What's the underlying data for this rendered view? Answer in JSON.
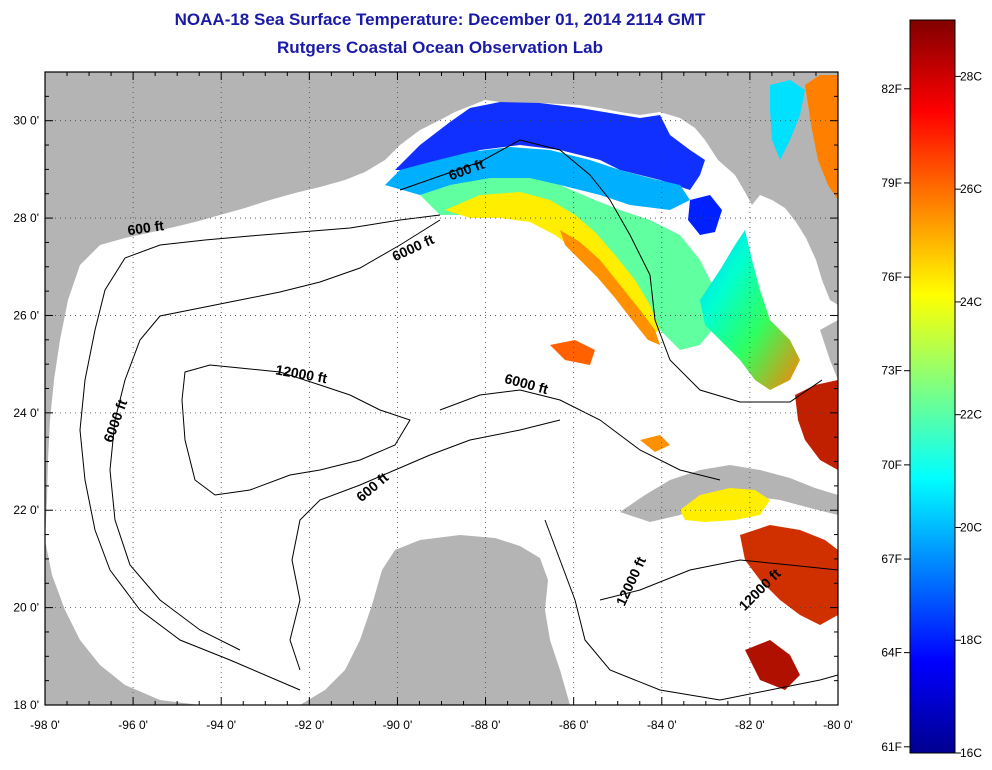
{
  "title": "NOAA-18 Sea Surface Temperature:  December 01, 2014 2114 GMT",
  "subtitle": "Rutgers Coastal Ocean Observation Lab",
  "map": {
    "lon_range": [
      -98,
      -80
    ],
    "lat_range": [
      18,
      31
    ],
    "lon_ticks": [
      {
        "value": -98,
        "label": "-98 0'"
      },
      {
        "value": -96,
        "label": "-96 0'"
      },
      {
        "value": -94,
        "label": "-94 0'"
      },
      {
        "value": -92,
        "label": "-92 0'"
      },
      {
        "value": -90,
        "label": "-90 0'"
      },
      {
        "value": -88,
        "label": "-88 0'"
      },
      {
        "value": -86,
        "label": "-86 0'"
      },
      {
        "value": -84,
        "label": "-84 0'"
      },
      {
        "value": -82,
        "label": "-82 0'"
      },
      {
        "value": -80,
        "label": "-80 0'"
      }
    ],
    "lat_ticks": [
      {
        "value": 18,
        "label": "18 0'"
      },
      {
        "value": 20,
        "label": "20 0'"
      },
      {
        "value": 22,
        "label": "22 0'"
      },
      {
        "value": 24,
        "label": "24 0'"
      },
      {
        "value": 26,
        "label": "26 0'"
      },
      {
        "value": 28,
        "label": "28 0'"
      },
      {
        "value": 30,
        "label": "30 0'"
      }
    ],
    "contour_labels": [
      {
        "text": "600 ft",
        "lon": -95.7,
        "lat": 27.7,
        "rotate": -8
      },
      {
        "text": "6000 ft",
        "lon": -89.6,
        "lat": 27.3,
        "rotate": -25
      },
      {
        "text": "600 ft",
        "lon": -88.4,
        "lat": 28.9,
        "rotate": -20
      },
      {
        "text": "12000 ft",
        "lon": -92.2,
        "lat": 24.7,
        "rotate": 10
      },
      {
        "text": "6000 ft",
        "lon": -87.1,
        "lat": 24.5,
        "rotate": 15
      },
      {
        "text": "6000 ft",
        "lon": -96.3,
        "lat": 23.8,
        "rotate": -70
      },
      {
        "text": "600 ft",
        "lon": -90.5,
        "lat": 22.4,
        "rotate": -40
      },
      {
        "text": "12000 ft",
        "lon": -84.6,
        "lat": 20.5,
        "rotate": -65
      },
      {
        "text": "12000 ft",
        "lon": -81.7,
        "lat": 20.3,
        "rotate": -45
      }
    ]
  },
  "colorbar": {
    "range_c": [
      16,
      29
    ],
    "celsius_labels": [
      {
        "value": 16,
        "label": "16C"
      },
      {
        "value": 18,
        "label": "18C"
      },
      {
        "value": 20,
        "label": "20C"
      },
      {
        "value": 22,
        "label": "22C"
      },
      {
        "value": 24,
        "label": "24C"
      },
      {
        "value": 26,
        "label": "26C"
      },
      {
        "value": 28,
        "label": "28C"
      }
    ],
    "fahrenheit_labels": [
      {
        "value_c": 16.11,
        "label": "61F"
      },
      {
        "value_c": 17.78,
        "label": "64F"
      },
      {
        "value_c": 19.44,
        "label": "67F"
      },
      {
        "value_c": 21.11,
        "label": "70F"
      },
      {
        "value_c": 22.78,
        "label": "73F"
      },
      {
        "value_c": 24.44,
        "label": "76F"
      },
      {
        "value_c": 26.11,
        "label": "79F"
      },
      {
        "value_c": 27.78,
        "label": "82F"
      }
    ],
    "colors": [
      "#00008f",
      "#0000ff",
      "#0080ff",
      "#00ffff",
      "#80ff80",
      "#ffff00",
      "#ff8000",
      "#ff0000",
      "#800000"
    ]
  },
  "colors": {
    "title": "#1a1aa8",
    "land": "#b4b4b4",
    "ocean": "#ffffff"
  }
}
